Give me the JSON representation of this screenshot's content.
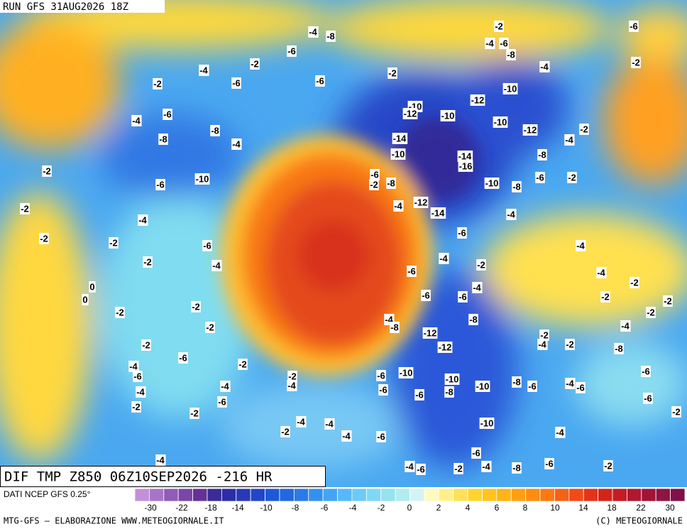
{
  "header": {
    "run": "RUN GFS 31AUG2026 18Z"
  },
  "map": {
    "title": "DIF TMP Z850 06Z10SEP2026 -216 HR",
    "labels": [
      -4,
      -8,
      -2,
      -6,
      -6,
      -4,
      -6,
      -8,
      -2,
      -4,
      -4,
      -2,
      -2,
      -6,
      -6,
      -2,
      -10,
      -12,
      -6,
      -10,
      -12,
      -10,
      -4,
      -8,
      -10,
      -12,
      -2,
      -8,
      -4,
      -4,
      -14,
      -10,
      -14,
      -16,
      -8,
      -2,
      -6,
      -2,
      -8,
      -6,
      -2,
      -10,
      -6,
      -10,
      -8,
      -2,
      -4,
      -12,
      -14,
      -4,
      -4,
      -2,
      -2,
      -6,
      -6,
      -4,
      -4,
      -2,
      -4,
      -6,
      -2,
      -4,
      -2,
      -4,
      -6,
      -6,
      -2,
      -2,
      -2,
      -2,
      -2,
      -8,
      -4,
      -8,
      -2,
      -4,
      -12,
      -2,
      -4,
      -2,
      -12,
      -2,
      -8,
      -6,
      -2,
      -4,
      -10,
      -6,
      -6,
      -6,
      -2,
      -10,
      -8,
      -6,
      -10,
      -4,
      -4,
      -6,
      -4,
      -6,
      -6,
      -8,
      -4,
      -6,
      -6,
      -2,
      -2,
      -2,
      -4,
      -4,
      -10,
      -2,
      -4,
      -4,
      -6,
      -6,
      -4,
      -4,
      -6,
      -2,
      -4,
      -8,
      -6,
      -2,
      0,
      0
    ]
  },
  "colorbar": {
    "source": "DATI NCEP GFS 0.25°",
    "colors": [
      "#c48fd8",
      "#a874c8",
      "#8f5cb8",
      "#7a46a8",
      "#643296",
      "#3c2a98",
      "#2c2ca8",
      "#2838b8",
      "#2246c8",
      "#1e58d8",
      "#2268e0",
      "#2a7ae8",
      "#3490f0",
      "#44a4f4",
      "#58b8f8",
      "#6ccaf8",
      "#80d8f4",
      "#96e2f0",
      "#b0ecf0",
      "#d4f4f4",
      "#fffac0",
      "#fff08a",
      "#ffe25a",
      "#ffd430",
      "#ffc420",
      "#ffb418",
      "#ffa010",
      "#ff8c10",
      "#ff7810",
      "#f86018",
      "#f04a18",
      "#e43418",
      "#d42418",
      "#c41c24",
      "#b01830",
      "#a01438",
      "#901440",
      "#801048"
    ],
    "ticks": [
      -30,
      -22,
      -18,
      -14,
      -10,
      -8,
      -6,
      -4,
      -2,
      0,
      2,
      4,
      6,
      8,
      10,
      14,
      18,
      22,
      30
    ]
  },
  "footer": {
    "left": "MTG-GFS — ELABORAZIONE WWW.METEOGIORNALE.IT",
    "right": "(C) METEOGIORNALE"
  }
}
